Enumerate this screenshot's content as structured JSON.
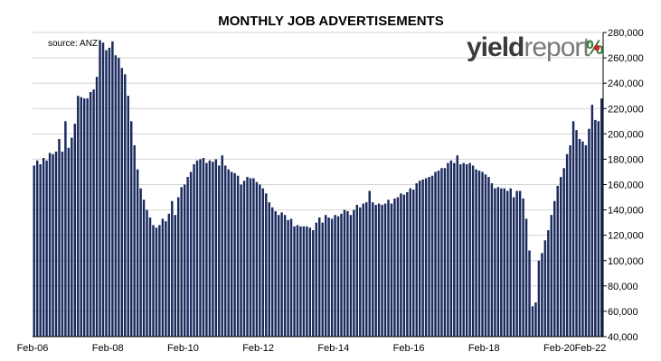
{
  "chart_data": {
    "type": "bar",
    "title": "MONTHLY JOB ADVERTISEMENTS",
    "source": "source: ANZ",
    "logo": {
      "part1": "yield",
      "part2": "report",
      "symbol": "%"
    },
    "xlabel": "",
    "ylabel": "",
    "ylim": [
      40000,
      280000
    ],
    "y_ticks": [
      "280,000",
      "260,000",
      "240,000",
      "220,000",
      "200,000",
      "180,000",
      "160,000",
      "140,000",
      "120,000",
      "100,000",
      "80,000",
      "60,000",
      "40,000"
    ],
    "x_ticks": [
      "Feb-06",
      "Feb-08",
      "Feb-10",
      "Feb-12",
      "Feb-14",
      "Feb-16",
      "Feb-18",
      "Feb-20",
      "Feb-22"
    ],
    "y_axis_position": "right",
    "grid": true,
    "bar_color": "#1a2a5e",
    "series": [
      {
        "values": [
          175000,
          179000,
          176000,
          181000,
          179000,
          185000,
          184000,
          186000,
          196000,
          186000,
          210000,
          189000,
          197000,
          208000,
          230000,
          229000,
          228000,
          228000,
          233000,
          235000,
          245000,
          274000,
          272000,
          266000,
          268000,
          273000,
          262000,
          260000,
          252000,
          247000,
          230000,
          210000,
          191000,
          172000,
          157000,
          148000,
          140000,
          134000,
          128000,
          126000,
          128000,
          133000,
          131000,
          137000,
          147000,
          136000,
          150000,
          158000,
          160000,
          166000,
          170000,
          176000,
          179000,
          180000,
          181000,
          177000,
          179000,
          178000,
          180000,
          175000,
          183000,
          175000,
          172000,
          170000,
          169000,
          167000,
          160000,
          163000,
          166000,
          165000,
          165000,
          162000,
          160000,
          157000,
          153000,
          146000,
          142000,
          139000,
          136000,
          138000,
          136000,
          132000,
          133000,
          127000,
          128000,
          127000,
          127000,
          127000,
          126000,
          124000,
          130000,
          134000,
          130000,
          136000,
          134000,
          133000,
          136000,
          135000,
          137000,
          140000,
          139000,
          136000,
          140000,
          144000,
          142000,
          145000,
          146000,
          155000,
          146000,
          144000,
          145000,
          144000,
          145000,
          148000,
          145000,
          149000,
          150000,
          153000,
          152000,
          154000,
          157000,
          156000,
          161000,
          163000,
          164000,
          165000,
          166000,
          167000,
          170000,
          171000,
          173000,
          173000,
          177000,
          179000,
          177000,
          183000,
          176000,
          177000,
          176000,
          177000,
          175000,
          172000,
          171000,
          170000,
          168000,
          166000,
          161000,
          157000,
          158000,
          157000,
          157000,
          155000,
          157000,
          150000,
          155000,
          155000,
          149000,
          133000,
          108000,
          64000,
          67000,
          100000,
          106000,
          116000,
          124000,
          136000,
          147000,
          159000,
          166000,
          173000,
          184000,
          191000,
          210000,
          203000,
          196000,
          194000,
          191000,
          204000,
          223000,
          211000,
          210000,
          228000
        ]
      }
    ]
  }
}
